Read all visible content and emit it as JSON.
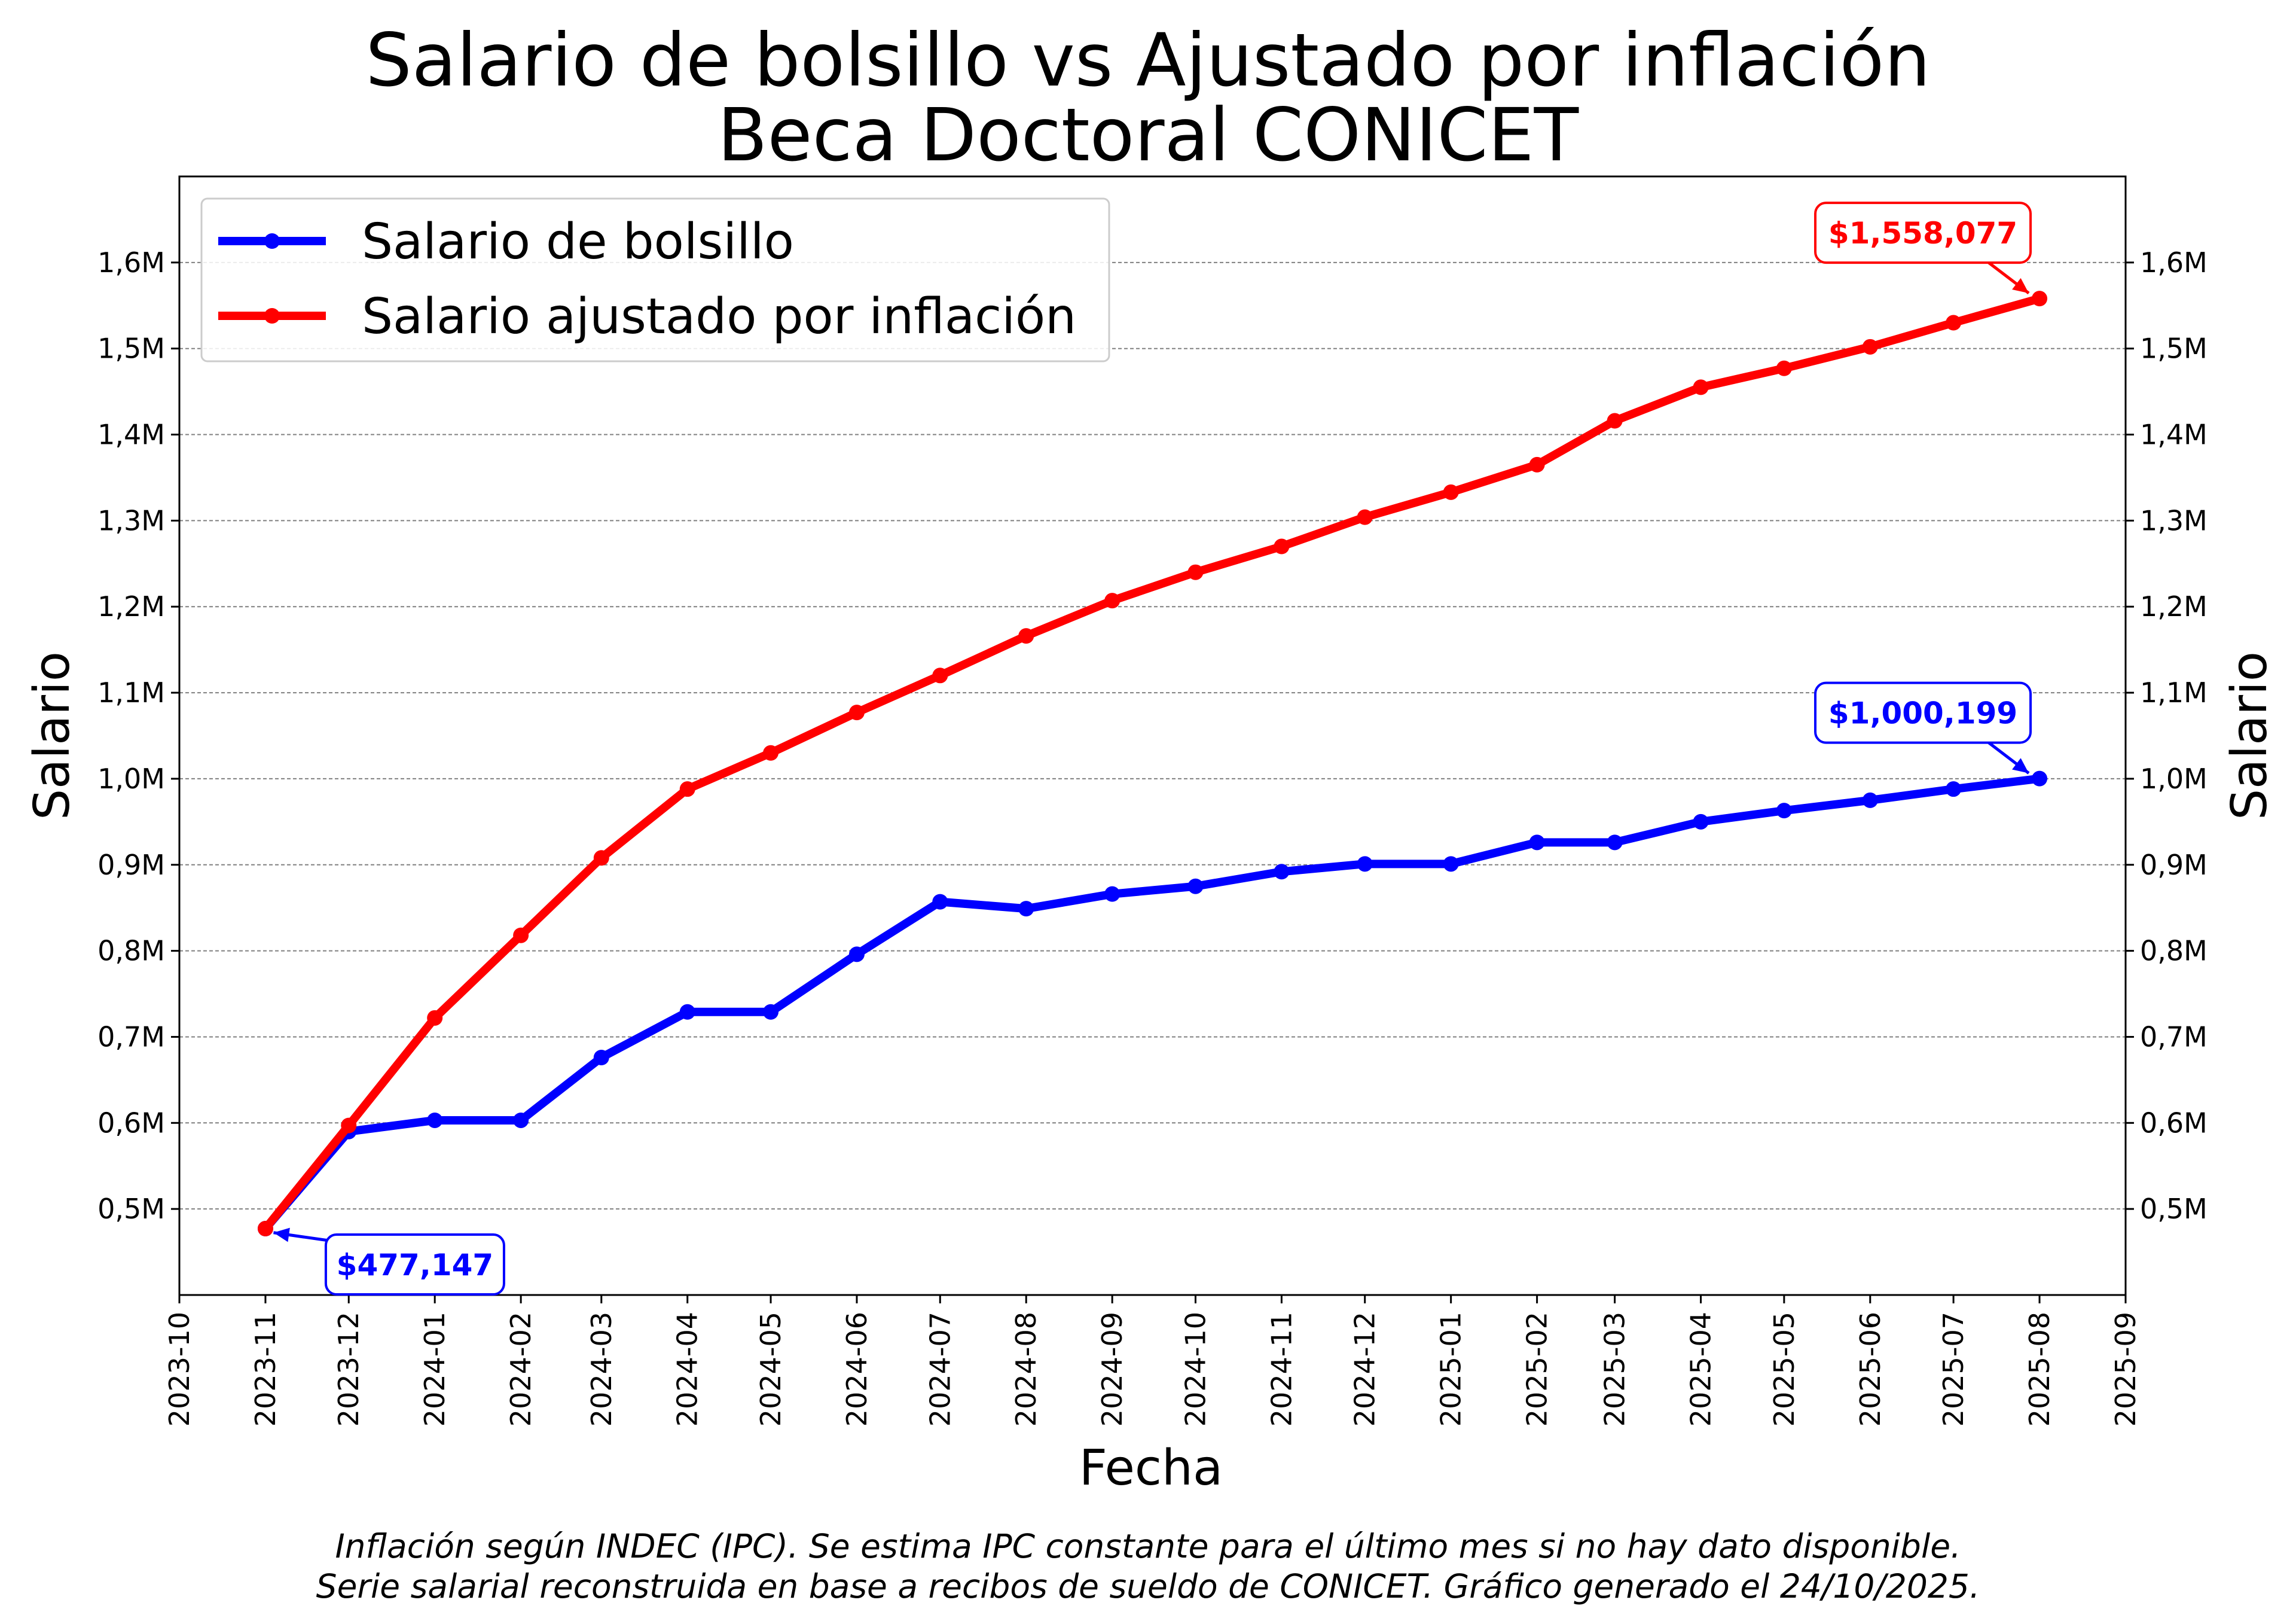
{
  "chart_data": {
    "type": "line",
    "title_line1": "Salario de bolsillo vs Ajustado por inflación",
    "title_line2": "Beca Doctoral CONICET",
    "xlabel": "Fecha",
    "ylabel_left": "Salario",
    "ylabel_right": "Salario",
    "x_ticks": [
      "2023-10",
      "2023-11",
      "2023-12",
      "2024-01",
      "2024-02",
      "2024-03",
      "2024-04",
      "2024-05",
      "2024-06",
      "2024-07",
      "2024-08",
      "2024-09",
      "2024-10",
      "2024-11",
      "2024-12",
      "2025-01",
      "2025-02",
      "2025-03",
      "2025-04",
      "2025-05",
      "2025-06",
      "2025-07",
      "2025-08",
      "2025-09"
    ],
    "xlim": [
      "2023-10-01",
      "2025-09-01"
    ],
    "ylim": [
      400000,
      1700000
    ],
    "y_ticks": [
      {
        "value": 500000,
        "label": "0,5M"
      },
      {
        "value": 600000,
        "label": "0,6M"
      },
      {
        "value": 700000,
        "label": "0,7M"
      },
      {
        "value": 800000,
        "label": "0,8M"
      },
      {
        "value": 900000,
        "label": "0,9M"
      },
      {
        "value": 1000000,
        "label": "1,0M"
      },
      {
        "value": 1100000,
        "label": "1,1M"
      },
      {
        "value": 1200000,
        "label": "1,2M"
      },
      {
        "value": 1300000,
        "label": "1,3M"
      },
      {
        "value": 1400000,
        "label": "1,4M"
      },
      {
        "value": 1500000,
        "label": "1,5M"
      },
      {
        "value": 1600000,
        "label": "1,6M"
      }
    ],
    "grid": "horizontal dashed",
    "legend_position": "top-left",
    "series": [
      {
        "name": "Salario de bolsillo",
        "color": "#0000ff",
        "x": [
          "2023-11-01",
          "2023-12-01",
          "2024-01-01",
          "2024-02-01",
          "2024-03-01",
          "2024-04-01",
          "2024-05-01",
          "2024-06-01",
          "2024-07-01",
          "2024-08-01",
          "2024-09-01",
          "2024-10-01",
          "2024-11-01",
          "2024-12-01",
          "2025-01-01",
          "2025-02-01",
          "2025-03-01",
          "2025-04-01",
          "2025-05-01",
          "2025-06-01",
          "2025-07-01",
          "2025-08-01"
        ],
        "values": [
          477147,
          590000,
          603000,
          603000,
          676000,
          729000,
          729000,
          796000,
          857000,
          849000,
          866000,
          875000,
          892000,
          901000,
          901000,
          926000,
          926000,
          950000,
          963000,
          975000,
          988000,
          1000199
        ]
      },
      {
        "name": "Salario ajustado por inflación",
        "color": "#ff0000",
        "x": [
          "2023-11-01",
          "2023-12-01",
          "2024-01-01",
          "2024-02-01",
          "2024-03-01",
          "2024-04-01",
          "2024-05-01",
          "2024-06-01",
          "2024-07-01",
          "2024-08-01",
          "2024-09-01",
          "2024-10-01",
          "2024-11-01",
          "2024-12-01",
          "2025-01-01",
          "2025-02-01",
          "2025-03-01",
          "2025-04-01",
          "2025-05-01",
          "2025-06-01",
          "2025-07-01",
          "2025-08-01"
        ],
        "values": [
          477147,
          597000,
          722000,
          818000,
          908000,
          988000,
          1030000,
          1077000,
          1120000,
          1166000,
          1207000,
          1240000,
          1270000,
          1304000,
          1333000,
          1365000,
          1416000,
          1455000,
          1477000,
          1502000,
          1530000,
          1558077
        ]
      }
    ],
    "annotations": [
      {
        "text": "$477,147",
        "series": 0,
        "point": "first",
        "color": "#0000ff"
      },
      {
        "text": "$1,000,199",
        "series": 0,
        "point": "last",
        "color": "#0000ff"
      },
      {
        "text": "$1,558,077",
        "series": 1,
        "point": "last",
        "color": "#ff0000"
      }
    ]
  },
  "footnote_line1": "Inflación según INDEC (IPC). Se estima IPC constante para el último mes si no hay dato disponible.",
  "footnote_line2": "Serie salarial reconstruida en base a recibos de sueldo de CONICET. Gráfico generado el 24/10/2025."
}
